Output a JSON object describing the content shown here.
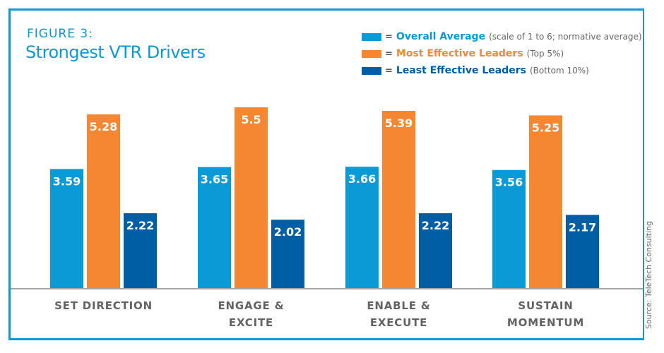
{
  "figure": {
    "label": "FIGURE 3:",
    "title": "Strongest VTR Drivers",
    "source": "Source: TeleTech Consulting"
  },
  "legend": [
    {
      "name": "Overall Average",
      "note": "(scale of 1 to 6; normative average)",
      "color": "#0a9bd6"
    },
    {
      "name": "Most Effective Leaders",
      "note": "(Top 5%)",
      "color": "#f58732"
    },
    {
      "name": "Least Effective Leaders",
      "note": "(Bottom 10%)",
      "color": "#005ea5"
    }
  ],
  "legend_eq": "=",
  "chart_data": {
    "type": "bar",
    "title": "Strongest VTR Drivers",
    "xlabel": "",
    "ylabel": "",
    "scale_note": "scale of 1 to 6; normative average",
    "categories": [
      [
        "SET DIRECTION"
      ],
      [
        "ENGAGE &",
        "EXCITE"
      ],
      [
        "ENABLE &",
        "EXECUTE"
      ],
      [
        "SUSTAIN",
        "MOMENTUM"
      ]
    ],
    "series": [
      {
        "name": "Overall Average",
        "color": "#0a9bd6",
        "values": [
          3.59,
          3.65,
          3.66,
          3.56
        ]
      },
      {
        "name": "Most Effective Leaders",
        "color": "#f58732",
        "values": [
          5.28,
          5.5,
          5.39,
          5.25
        ]
      },
      {
        "name": "Least Effective Leaders",
        "color": "#005ea5",
        "values": [
          2.22,
          2.02,
          2.22,
          2.17
        ]
      }
    ],
    "grid": false,
    "legend_position": "top-right"
  }
}
